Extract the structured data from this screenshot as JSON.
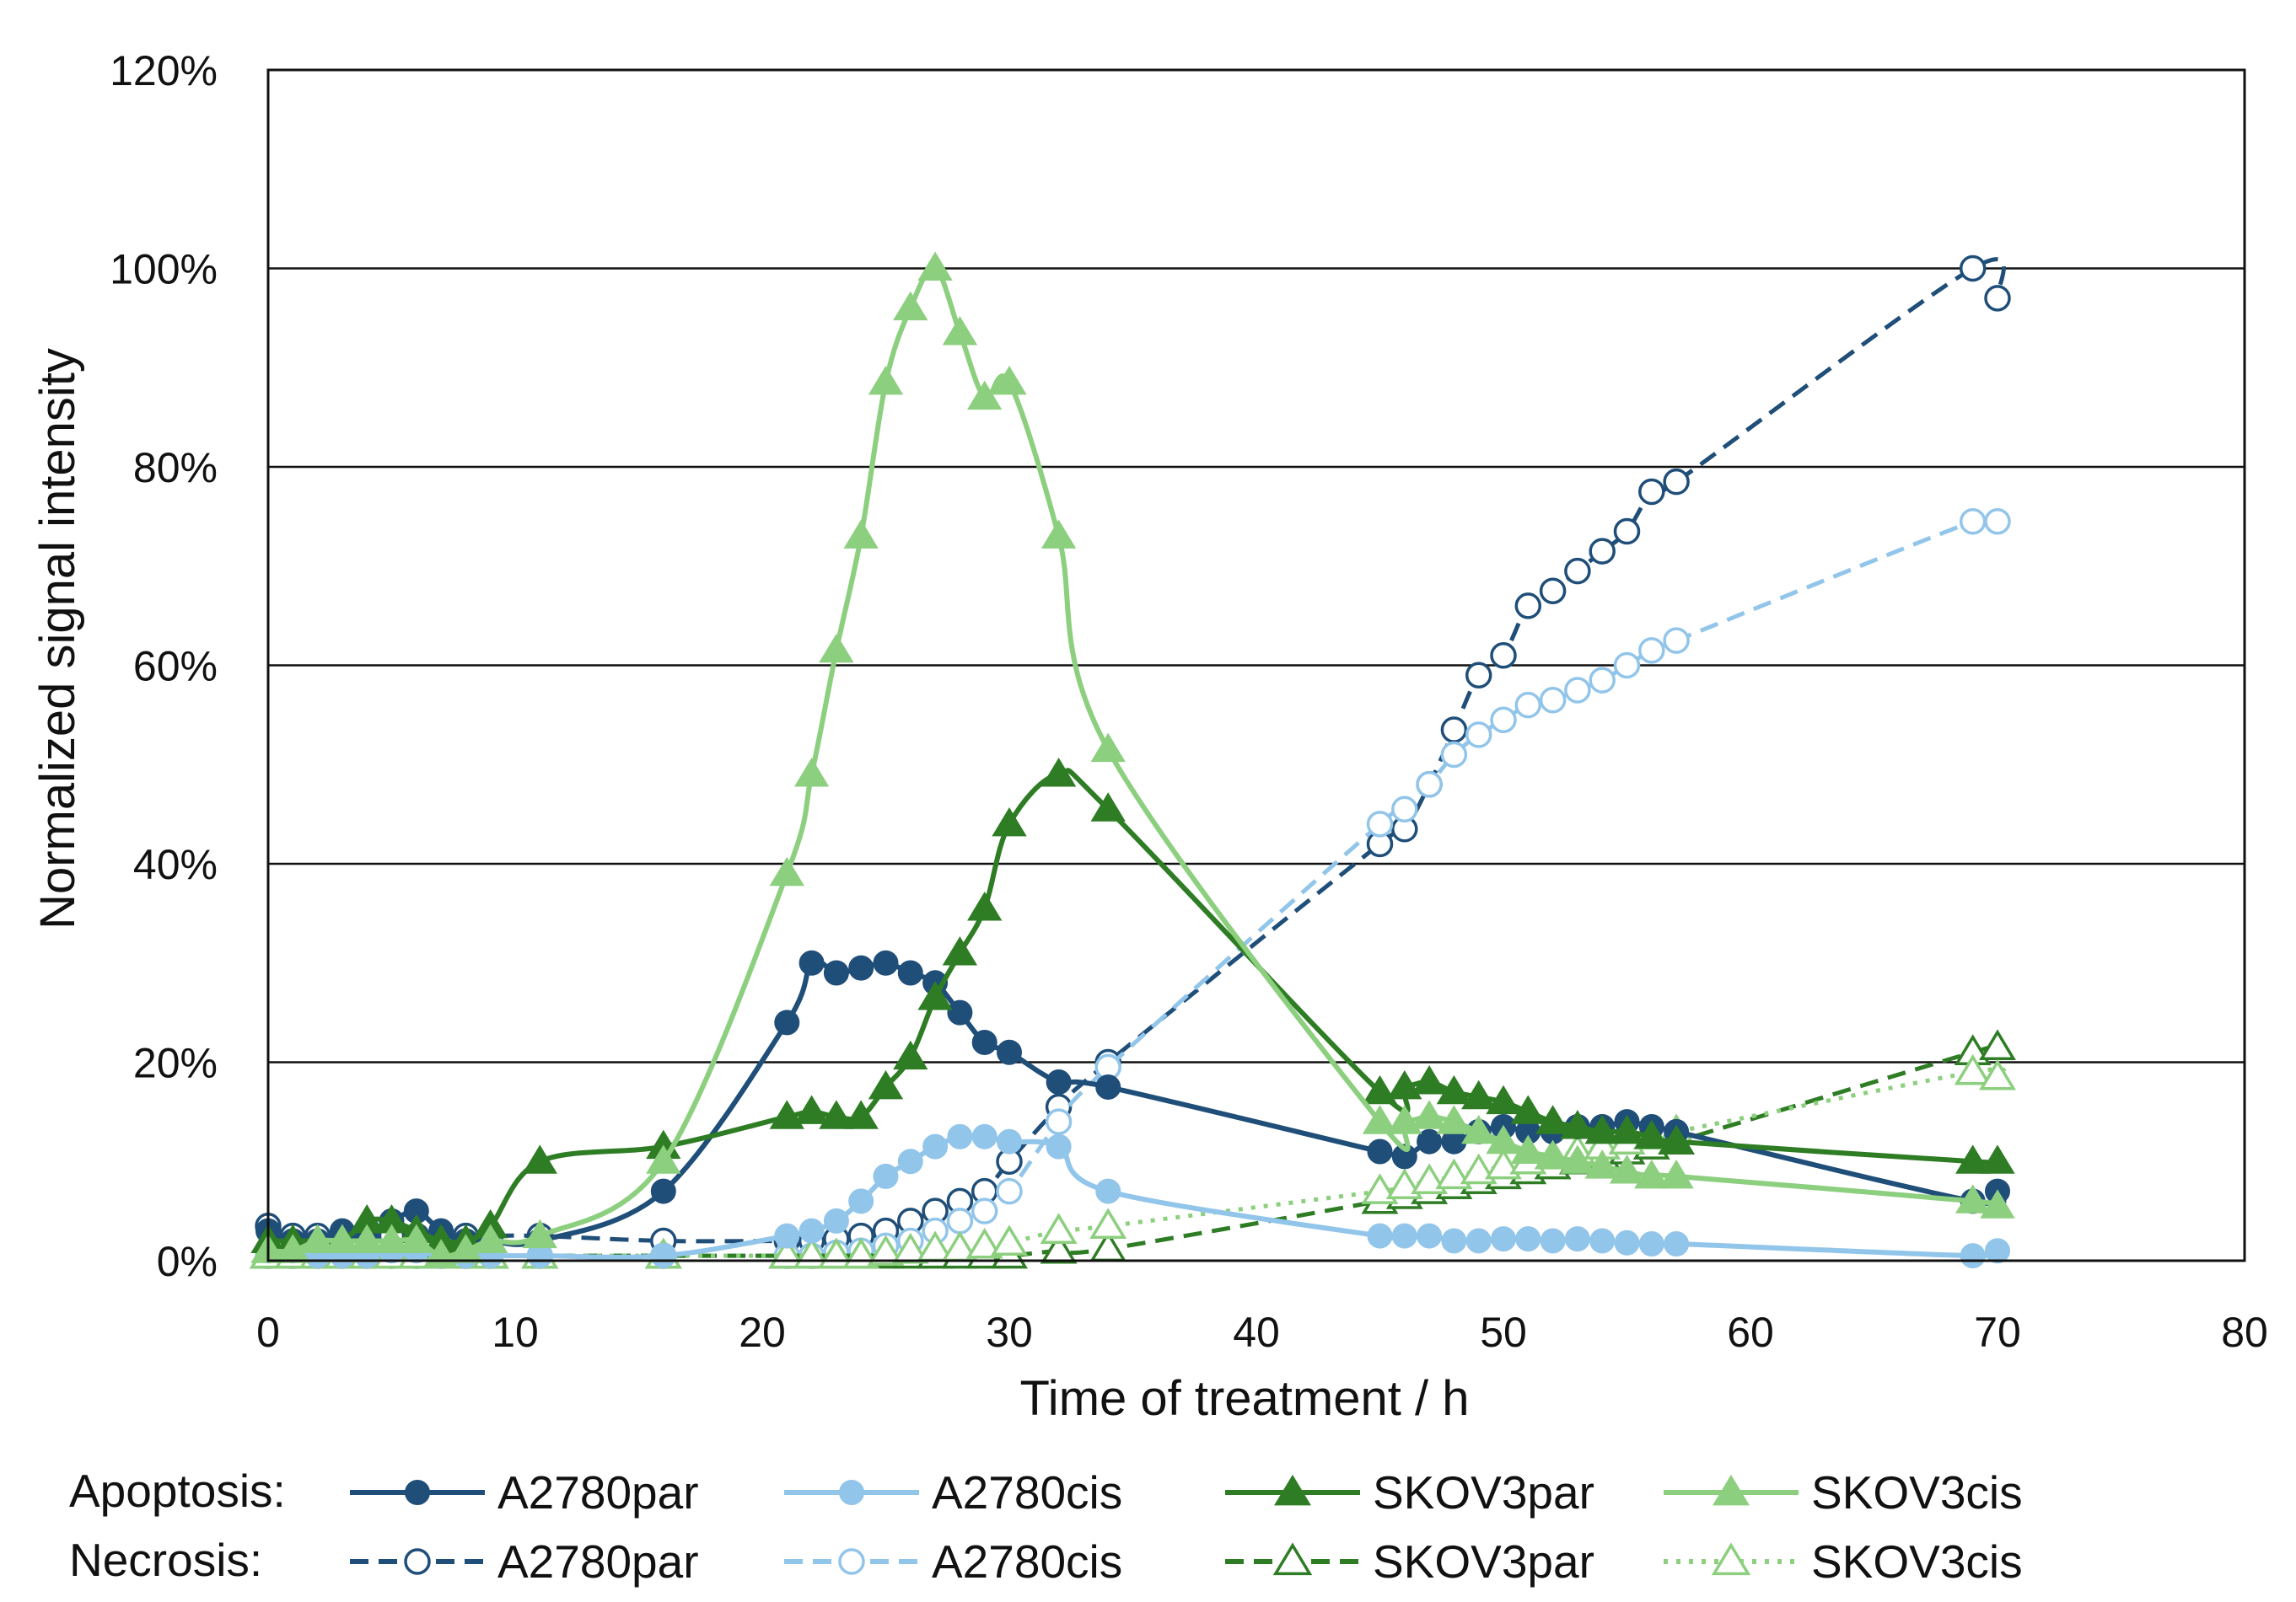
{
  "chart_data": {
    "type": "line",
    "title": "",
    "xlabel": "Time of treatment / h",
    "ylabel": "Normalized signal intensity",
    "xlim": [
      0,
      80
    ],
    "ylim": [
      0,
      1.2
    ],
    "x_ticks": [
      0,
      10,
      20,
      30,
      40,
      50,
      60,
      70,
      80
    ],
    "y_ticks": [
      0,
      0.2,
      0.4,
      0.6,
      0.8,
      1.0,
      1.2
    ],
    "y_tick_labels": [
      "0%",
      "20%",
      "40%",
      "60%",
      "80%",
      "100%",
      "120%"
    ],
    "grid": "horizontal",
    "legend": {
      "placement": "bottom",
      "row_labels": [
        "Apoptosis:",
        "Necrosis:"
      ]
    },
    "series": [
      {
        "name": "A2780par",
        "group": "Apoptosis",
        "color": "#1f4e79",
        "line": "solid",
        "marker": "circle",
        "fill": "filled",
        "x": [
          0,
          1,
          2,
          3,
          4,
          5,
          6,
          7,
          8,
          9,
          11,
          16,
          21,
          22,
          23,
          24,
          25,
          26,
          27,
          28,
          29,
          30,
          32,
          34,
          45,
          46,
          47,
          48,
          49,
          50,
          51,
          52,
          53,
          54,
          55,
          56,
          57,
          69,
          70
        ],
        "y": [
          0.03,
          0.02,
          0.02,
          0.03,
          0.03,
          0.04,
          0.05,
          0.03,
          0.02,
          0.02,
          0.02,
          0.07,
          0.24,
          0.3,
          0.29,
          0.295,
          0.3,
          0.29,
          0.28,
          0.25,
          0.22,
          0.21,
          0.18,
          0.175,
          0.11,
          0.105,
          0.12,
          0.12,
          0.13,
          0.135,
          0.13,
          0.13,
          0.135,
          0.135,
          0.14,
          0.135,
          0.13,
          0.06,
          0.07
        ]
      },
      {
        "name": "A2780cis",
        "group": "Apoptosis",
        "color": "#92c5ea",
        "line": "solid",
        "marker": "circle",
        "fill": "filled",
        "x": [
          0,
          1,
          2,
          3,
          4,
          5,
          6,
          7,
          8,
          9,
          11,
          16,
          21,
          22,
          23,
          24,
          25,
          26,
          27,
          28,
          29,
          30,
          32,
          34,
          45,
          46,
          47,
          48,
          49,
          50,
          51,
          52,
          53,
          54,
          55,
          56,
          57,
          69,
          70
        ],
        "y": [
          0.01,
          0.01,
          0.005,
          0.005,
          0.005,
          0.01,
          0.01,
          0.005,
          0.005,
          0.005,
          0.005,
          0.005,
          0.025,
          0.03,
          0.04,
          0.06,
          0.085,
          0.1,
          0.115,
          0.125,
          0.125,
          0.12,
          0.115,
          0.07,
          0.025,
          0.025,
          0.025,
          0.02,
          0.02,
          0.022,
          0.022,
          0.02,
          0.022,
          0.02,
          0.018,
          0.017,
          0.017,
          0.005,
          0.01
        ]
      },
      {
        "name": "SKOV3par",
        "group": "Apoptosis",
        "color": "#2e7d24",
        "line": "solid",
        "marker": "triangle",
        "fill": "filled",
        "x": [
          0,
          1,
          2,
          3,
          4,
          5,
          6,
          7,
          8,
          9,
          11,
          16,
          21,
          22,
          23,
          24,
          25,
          26,
          27,
          28,
          29,
          30,
          32,
          34,
          45,
          46,
          47,
          48,
          49,
          50,
          51,
          52,
          53,
          54,
          55,
          56,
          57,
          69,
          70
        ],
        "y": [
          0.02,
          0.02,
          0.02,
          0.02,
          0.04,
          0.04,
          0.03,
          0.02,
          0.02,
          0.035,
          0.1,
          0.115,
          0.145,
          0.15,
          0.145,
          0.145,
          0.175,
          0.205,
          0.265,
          0.31,
          0.355,
          0.44,
          0.49,
          0.455,
          0.17,
          0.175,
          0.18,
          0.17,
          0.165,
          0.16,
          0.15,
          0.14,
          0.135,
          0.13,
          0.13,
          0.125,
          0.12,
          0.1,
          0.1
        ]
      },
      {
        "name": "SKOV3cis",
        "group": "Apoptosis",
        "color": "#8ccf7e",
        "line": "solid",
        "marker": "triangle",
        "fill": "filled",
        "x": [
          0,
          1,
          2,
          3,
          4,
          5,
          6,
          7,
          8,
          9,
          11,
          16,
          21,
          22,
          23,
          24,
          25,
          26,
          27,
          28,
          29,
          30,
          32,
          34,
          45,
          46,
          47,
          48,
          49,
          50,
          51,
          52,
          53,
          54,
          55,
          56,
          57,
          69,
          70
        ],
        "y": [
          0.01,
          0.01,
          0.02,
          0.02,
          0.02,
          0.02,
          0.02,
          0.005,
          0.01,
          0.02,
          0.025,
          0.1,
          0.39,
          0.49,
          0.615,
          0.73,
          0.885,
          0.96,
          1.0,
          0.935,
          0.87,
          0.885,
          0.73,
          0.515,
          0.14,
          0.14,
          0.145,
          0.14,
          0.13,
          0.12,
          0.11,
          0.105,
          0.1,
          0.095,
          0.09,
          0.085,
          0.085,
          0.06,
          0.055
        ]
      },
      {
        "name": "A2780par",
        "group": "Necrosis",
        "color": "#1f4e79",
        "line": "dashed",
        "marker": "circle",
        "fill": "open",
        "x": [
          0,
          1,
          2,
          3,
          4,
          5,
          6,
          7,
          8,
          9,
          11,
          16,
          21,
          22,
          23,
          24,
          25,
          26,
          27,
          28,
          29,
          30,
          32,
          34,
          45,
          46,
          47,
          48,
          49,
          50,
          51,
          52,
          53,
          54,
          55,
          56,
          57,
          69,
          70
        ],
        "y": [
          0.035,
          0.025,
          0.025,
          0.025,
          0.025,
          0.025,
          0.025,
          0.025,
          0.025,
          0.025,
          0.025,
          0.02,
          0.02,
          0.02,
          0.022,
          0.025,
          0.03,
          0.04,
          0.05,
          0.06,
          0.07,
          0.1,
          0.155,
          0.2,
          0.42,
          0.435,
          0.48,
          0.535,
          0.59,
          0.61,
          0.66,
          0.675,
          0.695,
          0.715,
          0.735,
          0.775,
          0.785,
          1.0,
          0.97
        ]
      },
      {
        "name": "A2780cis",
        "group": "Necrosis",
        "color": "#92c5ea",
        "line": "dashed",
        "marker": "circle",
        "fill": "open",
        "x": [
          0,
          1,
          2,
          3,
          4,
          5,
          6,
          7,
          8,
          9,
          11,
          16,
          21,
          22,
          23,
          24,
          25,
          26,
          27,
          28,
          29,
          30,
          32,
          34,
          45,
          46,
          47,
          48,
          49,
          50,
          51,
          52,
          53,
          54,
          55,
          56,
          57,
          69,
          70
        ],
        "y": [
          0.005,
          0.005,
          0.005,
          0.005,
          0.005,
          0.005,
          0.005,
          0.005,
          0.005,
          0.005,
          0.005,
          0.005,
          0.005,
          0.005,
          0.008,
          0.01,
          0.015,
          0.02,
          0.03,
          0.04,
          0.05,
          0.07,
          0.14,
          0.195,
          0.44,
          0.455,
          0.48,
          0.51,
          0.53,
          0.545,
          0.56,
          0.565,
          0.575,
          0.585,
          0.6,
          0.615,
          0.625,
          0.745,
          0.745
        ]
      },
      {
        "name": "SKOV3par",
        "group": "Necrosis",
        "color": "#2e7d24",
        "line": "dashed",
        "marker": "triangle",
        "fill": "open",
        "x": [
          0,
          1,
          2,
          3,
          4,
          5,
          6,
          7,
          8,
          9,
          11,
          16,
          21,
          22,
          23,
          24,
          25,
          26,
          27,
          28,
          29,
          30,
          32,
          34,
          45,
          46,
          47,
          48,
          49,
          50,
          51,
          52,
          53,
          54,
          55,
          56,
          57,
          69,
          70
        ],
        "y": [
          0.005,
          0.005,
          0.005,
          0.005,
          0.005,
          0.005,
          0.005,
          0.005,
          0.005,
          0.005,
          0.005,
          0.005,
          0.005,
          0.005,
          0.005,
          0.005,
          0.005,
          0.005,
          0.005,
          0.005,
          0.005,
          0.005,
          0.01,
          0.012,
          0.06,
          0.065,
          0.07,
          0.075,
          0.08,
          0.085,
          0.09,
          0.095,
          0.1,
          0.105,
          0.11,
          0.115,
          0.12,
          0.21,
          0.215
        ]
      },
      {
        "name": "SKOV3cis",
        "group": "Necrosis",
        "color": "#8ccf7e",
        "line": "dotted",
        "marker": "triangle",
        "fill": "open",
        "x": [
          0,
          1,
          2,
          3,
          4,
          5,
          6,
          7,
          8,
          9,
          11,
          16,
          21,
          22,
          23,
          24,
          25,
          26,
          27,
          28,
          29,
          30,
          32,
          34,
          45,
          46,
          47,
          48,
          49,
          50,
          51,
          52,
          53,
          54,
          55,
          56,
          57,
          69,
          70
        ],
        "y": [
          0.005,
          0.005,
          0.005,
          0.005,
          0.005,
          0.005,
          0.005,
          0.005,
          0.005,
          0.005,
          0.005,
          0.005,
          0.005,
          0.005,
          0.005,
          0.005,
          0.008,
          0.01,
          0.012,
          0.012,
          0.015,
          0.018,
          0.03,
          0.035,
          0.07,
          0.075,
          0.08,
          0.085,
          0.09,
          0.095,
          0.1,
          0.105,
          0.11,
          0.115,
          0.12,
          0.125,
          0.13,
          0.19,
          0.185
        ]
      }
    ]
  }
}
